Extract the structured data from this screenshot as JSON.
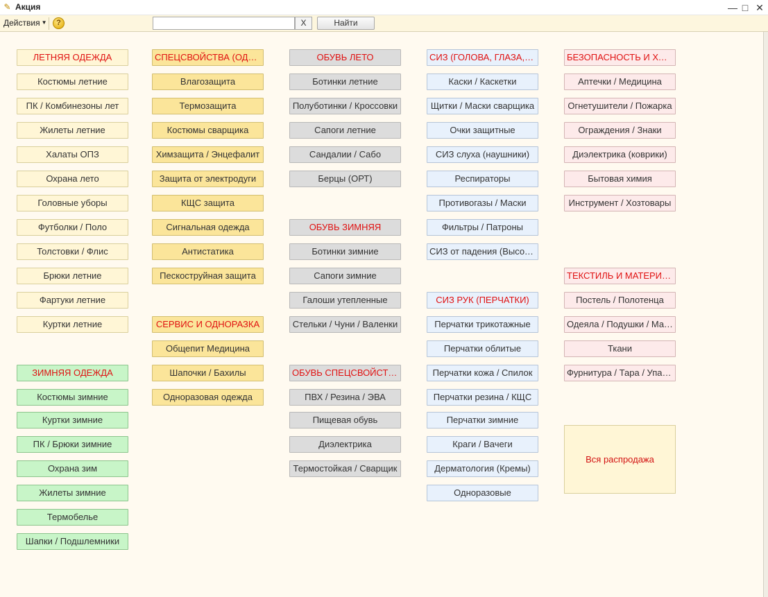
{
  "window": {
    "title": "Акция"
  },
  "toolbar": {
    "actions_label": "Действия",
    "search_value": "",
    "clear_label": "X",
    "find_label": "Найти"
  },
  "colors": {
    "header_text": "#e01010",
    "background": "#fffaf0"
  },
  "columns": [
    {
      "color": "yellow",
      "items": [
        {
          "label": "ЛЕТНЯЯ ОДЕЖДА",
          "header": true,
          "row": 0
        },
        {
          "label": "Костюмы летние",
          "row": 1
        },
        {
          "label": "ПК / Комбинезоны лет",
          "row": 2
        },
        {
          "label": "Жилеты летние",
          "row": 3
        },
        {
          "label": "Халаты ОПЗ",
          "row": 4
        },
        {
          "label": "Охрана лето",
          "row": 5
        },
        {
          "label": "Головные уборы",
          "row": 6
        },
        {
          "label": "Футболки / Поло",
          "row": 7
        },
        {
          "label": "Толстовки / Флис",
          "row": 8
        },
        {
          "label": "Брюки летние",
          "row": 9
        },
        {
          "label": "Фартуки летние",
          "row": 10
        },
        {
          "label": "Куртки летние",
          "row": 11
        }
      ]
    },
    {
      "color": "green",
      "items": [
        {
          "label": "ЗИМНЯЯ ОДЕЖДА",
          "header": true,
          "row": 13
        },
        {
          "label": "Костюмы зимние",
          "row": 14
        },
        {
          "label": "Куртки зимние",
          "row": 15
        },
        {
          "label": "ПК / Брюки зимние",
          "row": 16
        },
        {
          "label": "Охрана зим",
          "row": 17
        },
        {
          "label": "Жилеты зимние",
          "row": 18
        },
        {
          "label": "Термобелье",
          "row": 19
        },
        {
          "label": "Шапки / Подшлемники",
          "row": 20
        }
      ]
    },
    {
      "color": "orange",
      "items": [
        {
          "label": "СПЕЦСВОЙСТВА (ОДЕЖДА)",
          "header": true,
          "row": 0
        },
        {
          "label": "Влагозащита",
          "row": 1
        },
        {
          "label": "Термозащита",
          "row": 2
        },
        {
          "label": "Костюмы сварщика",
          "row": 3
        },
        {
          "label": "Химзащита / Энцефалит",
          "row": 4
        },
        {
          "label": "Защита от электродуги",
          "row": 5
        },
        {
          "label": "КЩС защита",
          "row": 6
        },
        {
          "label": "Сигнальная одежда",
          "row": 7
        },
        {
          "label": "Антистатика",
          "row": 8
        },
        {
          "label": "Пескоструйная защита",
          "row": 9
        },
        {
          "label": "СЕРВИС И ОДНОРАЗКА",
          "header": true,
          "row": 11
        },
        {
          "label": "Общепит Медицина",
          "row": 12
        },
        {
          "label": "Шапочки / Бахилы",
          "row": 13
        },
        {
          "label": "Одноразовая одежда",
          "row": 14
        }
      ]
    },
    {
      "color": "gray",
      "items": [
        {
          "label": "ОБУВЬ ЛЕТО",
          "header": true,
          "row": 0
        },
        {
          "label": "Ботинки летние",
          "row": 1
        },
        {
          "label": "Полуботинки / Кроссовки",
          "row": 2
        },
        {
          "label": "Сапоги летние",
          "row": 3
        },
        {
          "label": "Сандалии / Сабо",
          "row": 4
        },
        {
          "label": "Берцы (ОРТ)",
          "row": 5
        },
        {
          "label": "ОБУВЬ ЗИМНЯЯ",
          "header": true,
          "row": 7
        },
        {
          "label": "Ботинки зимние",
          "row": 8
        },
        {
          "label": "Сапоги зимние",
          "row": 9
        },
        {
          "label": "Галоши утепленные",
          "row": 10
        },
        {
          "label": "Стельки / Чуни / Валенки",
          "row": 11
        },
        {
          "label": "ОБУВЬ СПЕЦСВОЙСТВА",
          "header": true,
          "row": 13
        },
        {
          "label": "ПВХ / Резина / ЭВА",
          "row": 14
        },
        {
          "label": "Пищевая обувь",
          "row": 15
        },
        {
          "label": "Диэлектрика",
          "row": 16
        },
        {
          "label": "Термостойкая / Сварщик",
          "row": 17
        }
      ]
    },
    {
      "color": "blue",
      "items": [
        {
          "label": "СИЗ (ГОЛОВА, ГЛАЗА, ЛИЦО)",
          "header": true,
          "row": 0
        },
        {
          "label": "Каски / Каскетки",
          "row": 1
        },
        {
          "label": "Щитки / Маски сварщика",
          "row": 2
        },
        {
          "label": "Очки защитные",
          "row": 3
        },
        {
          "label": "СИЗ слуха (наушники)",
          "row": 4
        },
        {
          "label": "Респираторы",
          "row": 5
        },
        {
          "label": "Противогазы / Маски",
          "row": 6
        },
        {
          "label": "Фильтры / Патроны",
          "row": 7
        },
        {
          "label": "СИЗ от падения (Высота)",
          "row": 8
        },
        {
          "label": "СИЗ РУК (ПЕРЧАТКИ)",
          "header": true,
          "row": 10
        },
        {
          "label": "Перчатки трикотажные",
          "row": 11
        },
        {
          "label": "Перчатки облитые",
          "row": 12
        },
        {
          "label": "Перчатки кожа / Спилок",
          "row": 13
        },
        {
          "label": "Перчатки резина / КЩС",
          "row": 14
        },
        {
          "label": "Перчатки зимние",
          "row": 15
        },
        {
          "label": "Краги / Вачеги",
          "row": 16
        },
        {
          "label": "Дерматология (Кремы)",
          "row": 17
        },
        {
          "label": "Одноразовые",
          "row": 18
        }
      ]
    },
    {
      "color": "pink",
      "items": [
        {
          "label": "БЕЗОПАСНОСТЬ И ХОЗТОВАРЫ",
          "header": true,
          "row": 0
        },
        {
          "label": "Аптечки / Медицина",
          "row": 1
        },
        {
          "label": "Огнетушители / Пожарка",
          "row": 2
        },
        {
          "label": "Ограждения / Знаки",
          "row": 3
        },
        {
          "label": "Диэлектрика (коврики)",
          "row": 4
        },
        {
          "label": "Бытовая химия",
          "row": 5
        },
        {
          "label": "Инструмент / Хозтовары",
          "row": 6
        },
        {
          "label": "ТЕКСТИЛЬ И МАТЕРИАЛЫ",
          "header": true,
          "row": 9
        },
        {
          "label": "Постель / Полотенца",
          "row": 10
        },
        {
          "label": "Одеяла / Подушки / Матрасы",
          "row": 11
        },
        {
          "label": "Ткани",
          "row": 12
        },
        {
          "label": "Фурнитура / Тара / Упаковка",
          "row": 13
        }
      ]
    }
  ],
  "sale_button": {
    "label": "Вся распродажа"
  }
}
